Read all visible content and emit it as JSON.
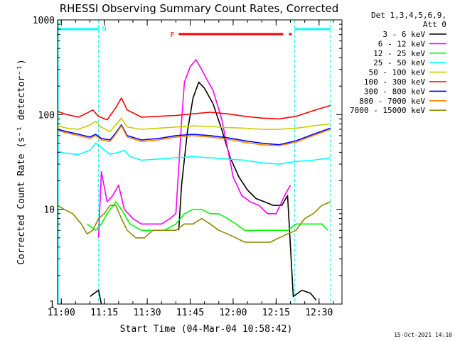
{
  "chart_data": {
    "type": "line",
    "title": "RHESSI Observing Summary Count Rates, Corrected",
    "xlabel": "Start Time (04-Mar-04 10:58:42)",
    "ylabel": "Corrected Count Rate (s⁻¹ detector⁻¹)",
    "y_scale": "log",
    "ylim": [
      1,
      1000
    ],
    "xlim": [
      "10:58:42",
      "12:38:00"
    ],
    "grid": false,
    "legend_placement": "right, outside plot",
    "x_ticks": [
      "11:00",
      "11:15",
      "11:30",
      "11:45",
      "12:00",
      "12:15",
      "12:30"
    ],
    "y_ticks": [
      "1",
      "10",
      "100",
      "1000"
    ],
    "legend_header": [
      "Det 1,3,4,5,6,9,",
      "Att 0"
    ],
    "annotations": {
      "night_marker": "N",
      "flare_marker": "F",
      "night_intervals": [
        [
          "10:58:42",
          "11:13:00"
        ],
        [
          "12:21:30",
          "12:34:00"
        ]
      ],
      "flare_intervals": [
        [
          "11:41:00",
          "12:17:30"
        ],
        [
          "12:19:30",
          "12:20:30"
        ]
      ],
      "footer_timestamp": "15-Oct-2021 14:10"
    },
    "series": [
      {
        "name": "3 - 6 keV",
        "color": "#000000",
        "points": [
          [
            "11:10",
            1.2
          ],
          [
            "11:13",
            1.4
          ],
          [
            "11:14",
            1.0
          ],
          [
            "11:40",
            null
          ],
          [
            "11:41",
            6
          ],
          [
            "11:42",
            18
          ],
          [
            "11:44",
            65
          ],
          [
            "11:46",
            150
          ],
          [
            "11:48",
            220
          ],
          [
            "11:50",
            190
          ],
          [
            "11:53",
            130
          ],
          [
            "11:56",
            70
          ],
          [
            "11:59",
            35
          ],
          [
            "12:02",
            22
          ],
          [
            "12:05",
            16
          ],
          [
            "12:08",
            13
          ],
          [
            "12:11",
            12
          ],
          [
            "12:14",
            11
          ],
          [
            "12:17",
            11
          ],
          [
            "12:19",
            14
          ],
          [
            "12:21",
            1.2
          ],
          [
            "12:24",
            1.4
          ],
          [
            "12:27",
            1.3
          ],
          [
            "12:29",
            1.1
          ]
        ]
      },
      {
        "name": "6 - 12 keV",
        "color": "#ff00ff",
        "points": [
          [
            "11:10",
            null
          ],
          [
            "11:13",
            5
          ],
          [
            "11:14",
            25
          ],
          [
            "11:16",
            12
          ],
          [
            "11:18",
            14
          ],
          [
            "11:20",
            18
          ],
          [
            "11:22",
            10
          ],
          [
            "11:25",
            8
          ],
          [
            "11:28",
            7
          ],
          [
            "11:32",
            7
          ],
          [
            "11:35",
            7
          ],
          [
            "11:38",
            8
          ],
          [
            "11:40",
            9
          ],
          [
            "11:42",
            85
          ],
          [
            "11:43",
            220
          ],
          [
            "11:45",
            320
          ],
          [
            "11:47",
            380
          ],
          [
            "11:49",
            300
          ],
          [
            "11:51",
            230
          ],
          [
            "11:53",
            180
          ],
          [
            "11:56",
            90
          ],
          [
            "11:58",
            45
          ],
          [
            "12:00",
            22
          ],
          [
            "12:03",
            14
          ],
          [
            "12:06",
            12
          ],
          [
            "12:09",
            11
          ],
          [
            "12:12",
            9
          ],
          [
            "12:15",
            9
          ],
          [
            "12:18",
            14
          ],
          [
            "12:20",
            18
          ],
          [
            "12:21",
            null
          ]
        ]
      },
      {
        "name": "12 - 25 keV",
        "color": "#00ff00",
        "points": [
          [
            "11:09",
            7
          ],
          [
            "11:12",
            6
          ],
          [
            "11:14",
            7
          ],
          [
            "11:16",
            9
          ],
          [
            "11:19",
            12
          ],
          [
            "11:21",
            10
          ],
          [
            "11:24",
            7
          ],
          [
            "11:28",
            6
          ],
          [
            "11:32",
            6
          ],
          [
            "11:36",
            6
          ],
          [
            "11:40",
            7
          ],
          [
            "11:43",
            9
          ],
          [
            "11:46",
            10
          ],
          [
            "11:49",
            10
          ],
          [
            "11:52",
            9
          ],
          [
            "11:55",
            9
          ],
          [
            "11:58",
            8
          ],
          [
            "12:01",
            7
          ],
          [
            "12:04",
            6
          ],
          [
            "12:07",
            6
          ],
          [
            "12:10",
            6
          ],
          [
            "12:13",
            6
          ],
          [
            "12:16",
            6
          ],
          [
            "12:19",
            6
          ],
          [
            "12:22",
            7
          ],
          [
            "12:25",
            7
          ],
          [
            "12:28",
            7
          ],
          [
            "12:31",
            7
          ],
          [
            "12:33",
            6
          ]
        ]
      },
      {
        "name": "25 - 50 keV",
        "color": "#00ffff",
        "points": [
          [
            "10:58:42",
            41
          ],
          [
            "11:02",
            39
          ],
          [
            "11:06",
            38
          ],
          [
            "11:10",
            42
          ],
          [
            "11:12",
            50
          ],
          [
            "11:14",
            45
          ],
          [
            "11:17",
            38
          ],
          [
            "11:20",
            40
          ],
          [
            "11:22",
            42
          ],
          [
            "11:24",
            36
          ],
          [
            "11:28",
            33
          ],
          [
            "11:34",
            34
          ],
          [
            "11:40",
            35
          ],
          [
            "11:46",
            36
          ],
          [
            "11:52",
            35
          ],
          [
            "11:58",
            34
          ],
          [
            "12:04",
            33
          ],
          [
            "12:10",
            31
          ],
          [
            "12:16",
            30
          ],
          [
            "12:22",
            32
          ],
          [
            "12:28",
            33
          ],
          [
            "12:34",
            35
          ]
        ]
      },
      {
        "name": "50 - 100 keV",
        "color": "#cccc00",
        "points": [
          [
            "10:58:42",
            76
          ],
          [
            "11:02",
            72
          ],
          [
            "11:06",
            70
          ],
          [
            "11:10",
            78
          ],
          [
            "11:12",
            85
          ],
          [
            "11:14",
            74
          ],
          [
            "11:17",
            66
          ],
          [
            "11:19",
            78
          ],
          [
            "11:21",
            92
          ],
          [
            "11:23",
            74
          ],
          [
            "11:28",
            70
          ],
          [
            "11:34",
            72
          ],
          [
            "11:40",
            74
          ],
          [
            "11:46",
            76
          ],
          [
            "11:52",
            75
          ],
          [
            "11:58",
            73
          ],
          [
            "12:04",
            72
          ],
          [
            "12:10",
            70
          ],
          [
            "12:16",
            70
          ],
          [
            "12:22",
            72
          ],
          [
            "12:28",
            76
          ],
          [
            "12:34",
            80
          ]
        ]
      },
      {
        "name": "100 - 300 keV",
        "color": "#ff0000",
        "points": [
          [
            "10:58:42",
            108
          ],
          [
            "11:02",
            100
          ],
          [
            "11:06",
            94
          ],
          [
            "11:09",
            104
          ],
          [
            "11:11",
            112
          ],
          [
            "11:13",
            96
          ],
          [
            "11:16",
            88
          ],
          [
            "11:19",
            118
          ],
          [
            "11:21",
            150
          ],
          [
            "11:23",
            112
          ],
          [
            "11:28",
            94
          ],
          [
            "11:34",
            96
          ],
          [
            "11:40",
            98
          ],
          [
            "11:46",
            102
          ],
          [
            "11:52",
            106
          ],
          [
            "11:58",
            102
          ],
          [
            "12:04",
            96
          ],
          [
            "12:10",
            92
          ],
          [
            "12:16",
            90
          ],
          [
            "12:22",
            96
          ],
          [
            "12:28",
            110
          ],
          [
            "12:34",
            125
          ]
        ]
      },
      {
        "name": "300 - 800 keV",
        "color": "#0000ff",
        "points": [
          [
            "10:58:42",
            70
          ],
          [
            "11:02",
            66
          ],
          [
            "11:06",
            62
          ],
          [
            "11:10",
            58
          ],
          [
            "11:12",
            62
          ],
          [
            "11:14",
            56
          ],
          [
            "11:17",
            54
          ],
          [
            "11:19",
            64
          ],
          [
            "11:21",
            78
          ],
          [
            "11:23",
            60
          ],
          [
            "11:28",
            54
          ],
          [
            "11:34",
            56
          ],
          [
            "11:40",
            60
          ],
          [
            "11:46",
            62
          ],
          [
            "11:52",
            60
          ],
          [
            "11:58",
            57
          ],
          [
            "12:04",
            53
          ],
          [
            "12:10",
            50
          ],
          [
            "12:16",
            48
          ],
          [
            "12:22",
            53
          ],
          [
            "12:28",
            62
          ],
          [
            "12:34",
            72
          ]
        ]
      },
      {
        "name": "800 - 7000 keV",
        "color": "#ff8800",
        "points": [
          [
            "10:58:42",
            68
          ],
          [
            "11:02",
            64
          ],
          [
            "11:06",
            60
          ],
          [
            "11:10",
            56
          ],
          [
            "11:12",
            60
          ],
          [
            "11:14",
            54
          ],
          [
            "11:17",
            52
          ],
          [
            "11:19",
            62
          ],
          [
            "11:21",
            76
          ],
          [
            "11:23",
            58
          ],
          [
            "11:28",
            52
          ],
          [
            "11:34",
            54
          ],
          [
            "11:40",
            58
          ],
          [
            "11:46",
            60
          ],
          [
            "11:52",
            58
          ],
          [
            "11:58",
            55
          ],
          [
            "12:04",
            51
          ],
          [
            "12:10",
            48
          ],
          [
            "12:16",
            47
          ],
          [
            "12:22",
            51
          ],
          [
            "12:28",
            60
          ],
          [
            "12:34",
            70
          ]
        ]
      },
      {
        "name": "7000 - 15000 keV",
        "color": "#8b8b00",
        "points": [
          [
            "10:58:42",
            11
          ],
          [
            "11:01",
            10
          ],
          [
            "11:04",
            9
          ],
          [
            "11:07",
            7
          ],
          [
            "11:09",
            5.5
          ],
          [
            "11:11",
            6
          ],
          [
            "11:13",
            8
          ],
          [
            "11:15",
            9
          ],
          [
            "11:17",
            11
          ],
          [
            "11:19",
            11
          ],
          [
            "11:21",
            8
          ],
          [
            "11:23",
            6
          ],
          [
            "11:26",
            5
          ],
          [
            "11:29",
            5
          ],
          [
            "11:32",
            6
          ],
          [
            "11:36",
            6
          ],
          [
            "11:40",
            6
          ],
          [
            "11:43",
            7
          ],
          [
            "11:46",
            7
          ],
          [
            "11:49",
            8
          ],
          [
            "11:52",
            7
          ],
          [
            "11:55",
            6
          ],
          [
            "11:58",
            5.5
          ],
          [
            "12:01",
            5
          ],
          [
            "12:04",
            4.5
          ],
          [
            "12:07",
            4.5
          ],
          [
            "12:10",
            4.5
          ],
          [
            "12:13",
            4.5
          ],
          [
            "12:16",
            5
          ],
          [
            "12:19",
            5.5
          ],
          [
            "12:22",
            6
          ],
          [
            "12:25",
            8
          ],
          [
            "12:28",
            9
          ],
          [
            "12:31",
            11
          ],
          [
            "12:34",
            12
          ]
        ]
      }
    ]
  }
}
